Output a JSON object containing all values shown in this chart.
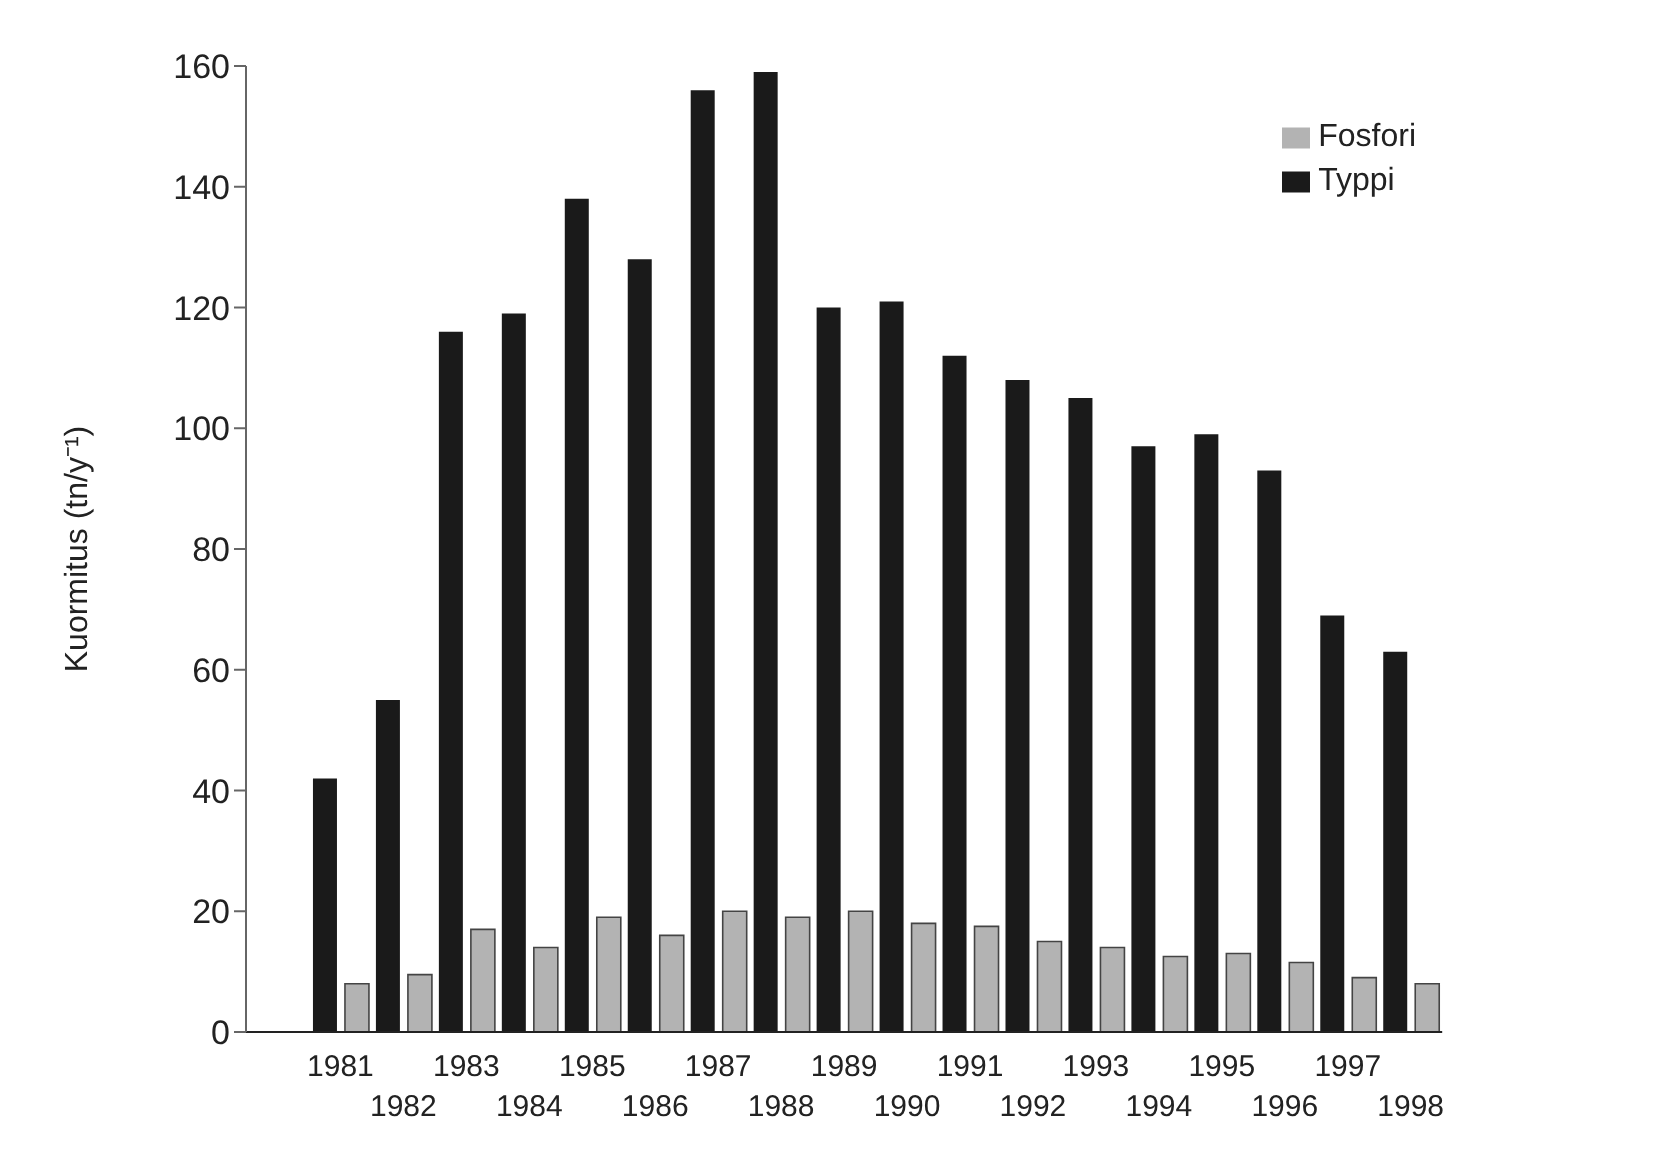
{
  "chart_data": {
    "type": "bar",
    "ylabel": "Kuormitus (tn/y⁻¹)",
    "categories": [
      null,
      "1981",
      "1982",
      "1983",
      "1984",
      "1985",
      "1986",
      "1987",
      "1988",
      "1989",
      "1990",
      "1991",
      "1992",
      "1993",
      "1994",
      "1995",
      "1996",
      "1997",
      "1998"
    ],
    "series": [
      {
        "name": "Typpi",
        "color": "#1a1a1a",
        "values": [
          null,
          42,
          55,
          116,
          119,
          138,
          128,
          156,
          159,
          120,
          121,
          112,
          108,
          105,
          97,
          99,
          93,
          69,
          63
        ]
      },
      {
        "name": "Fosfori",
        "color": "#b3b3b3",
        "values": [
          null,
          8,
          9.5,
          17,
          14,
          19,
          16,
          20,
          19,
          20,
          18,
          17.5,
          15,
          14,
          12.5,
          13,
          11.5,
          9,
          8
        ]
      }
    ],
    "ylim": [
      0,
      160
    ],
    "yticks": [
      0,
      20,
      40,
      60,
      80,
      100,
      120,
      140,
      160
    ],
    "grid": false,
    "legend": "top right"
  }
}
